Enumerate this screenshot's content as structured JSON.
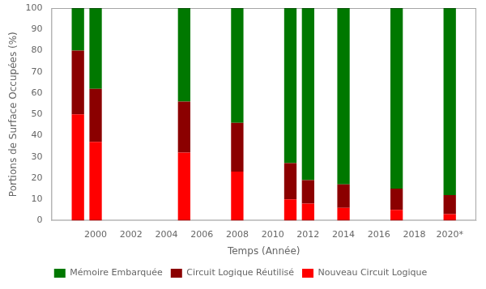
{
  "chart_data": {
    "type": "bar",
    "stacked": true,
    "x": [
      1999,
      2000,
      2005,
      2008,
      2011,
      2012,
      2014,
      2017,
      2020
    ],
    "series": [
      {
        "name": "Nouveau Circuit Logique",
        "color": "#ff0000",
        "values": [
          50,
          37,
          32,
          23,
          10,
          8,
          6,
          5,
          3
        ]
      },
      {
        "name": "Circuit Logique Réutilisé",
        "color": "#8b0000",
        "values": [
          30,
          25,
          24,
          23,
          17,
          11,
          11,
          10,
          9
        ]
      },
      {
        "name": "Mémoire Embarquée",
        "color": "#007800",
        "values": [
          20,
          38,
          44,
          54,
          73,
          81,
          83,
          85,
          88
        ]
      }
    ],
    "xlabel": "Temps (Année)",
    "ylabel": "Portions de Surface Occupées (%)",
    "xlim": [
      1997.5,
      2021.5
    ],
    "xticks": [
      2000,
      2002,
      2004,
      2006,
      2008,
      2010,
      2012,
      2014,
      2016,
      2018,
      {
        "value": 2020,
        "label": "2020*"
      }
    ],
    "ylim": [
      0,
      100
    ],
    "yticks": [
      0,
      10,
      20,
      30,
      40,
      50,
      60,
      70,
      80,
      90,
      100
    ],
    "grid": false,
    "legend": "bottom"
  }
}
